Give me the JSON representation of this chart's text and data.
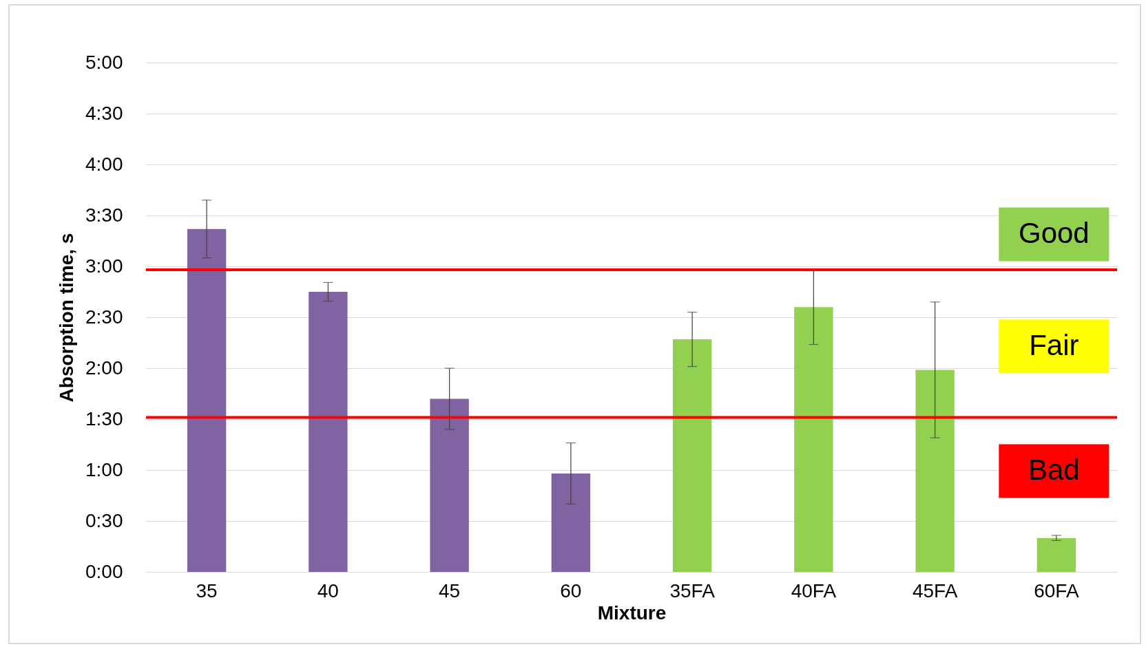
{
  "chart_data": {
    "type": "bar",
    "xlabel": "Mixture",
    "ylabel": "Absorption time, s",
    "categories": [
      "35",
      "40",
      "45",
      "60",
      "35FA",
      "40FA",
      "45FA",
      "60FA"
    ],
    "values": [
      202,
      165,
      102,
      58,
      137,
      156,
      119,
      20
    ],
    "errors": [
      17,
      5.5,
      18,
      18,
      16,
      22,
      40,
      1.5
    ],
    "colors": [
      "#8064a2",
      "#8064a2",
      "#8064a2",
      "#8064a2",
      "#92d050",
      "#92d050",
      "#92d050",
      "#92d050"
    ],
    "ylim": [
      0,
      300
    ],
    "yticks": [
      {
        "value": 0,
        "label": "0:00"
      },
      {
        "value": 30,
        "label": "0:30"
      },
      {
        "value": 60,
        "label": "1:00"
      },
      {
        "value": 90,
        "label": "1:30"
      },
      {
        "value": 120,
        "label": "2:00"
      },
      {
        "value": 150,
        "label": "2:30"
      },
      {
        "value": 180,
        "label": "3:00"
      },
      {
        "value": 210,
        "label": "3:30"
      },
      {
        "value": 240,
        "label": "4:00"
      },
      {
        "value": 270,
        "label": "4:30"
      },
      {
        "value": 300,
        "label": "5:00"
      }
    ],
    "grid": "y",
    "ref_lines": [
      {
        "axis": "y",
        "value": 178,
        "color": "#ff0000"
      },
      {
        "axis": "y",
        "value": 91,
        "color": "#ff0000"
      }
    ],
    "annotations": [
      "Good",
      "Fair",
      "Bad"
    ]
  }
}
